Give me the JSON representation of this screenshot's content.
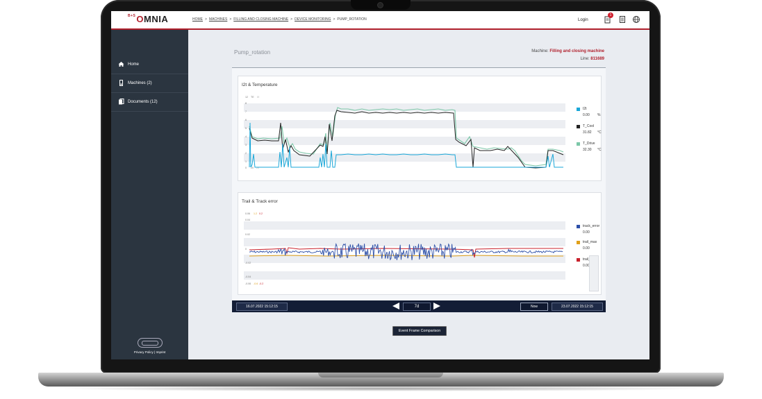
{
  "app": {
    "logo_superscript": "B+S",
    "logo_o": "O",
    "logo_rest": "MNIA"
  },
  "breadcrumb": [
    "HOME",
    "MACHINES",
    "FILLING AND CLOSING MACHINE",
    "DEVICE MONITORING",
    "PUMP_ROTATION"
  ],
  "header": {
    "login": "Login",
    "notification_count": "1",
    "icons": [
      "notifications-icon",
      "document-list-icon",
      "globe-icon"
    ]
  },
  "sidebar": {
    "items": [
      {
        "label": "Home",
        "icon": "home-icon"
      },
      {
        "label": "Machines (2)",
        "icon": "machine-icon"
      },
      {
        "label": "Documents (12)",
        "icon": "documents-icon"
      }
    ],
    "privacy": "Privacy Policy | Imprint"
  },
  "page": {
    "title": "Pump_rotation",
    "machine_label": "Machine:",
    "machine_value": "Filling and closing machine",
    "line_label": "Line:",
    "line_value": "811689"
  },
  "charts": [
    {
      "title": "I2t & Temperature",
      "axis_headers": [
        "12",
        "TE",
        "IX"
      ],
      "yticks": [
        "8",
        "7",
        "6",
        "5",
        "4",
        "3",
        "2",
        "1"
      ],
      "bottom_labels": [
        "0",
        "20",
        "20"
      ],
      "legend": [
        {
          "name": "I2t",
          "value": "0.00",
          "unit": "%",
          "color": "#1aa7d8"
        },
        {
          "name": "T_Cool",
          "value": "31.82",
          "unit": "°C",
          "color": "#222222"
        },
        {
          "name": "T_Drive",
          "value": "32.30",
          "unit": "°C",
          "color": "#7cc7a8"
        }
      ]
    },
    {
      "title": "Trail & Track error",
      "axis_headers": [
        "0.06",
        "1.2",
        "0.2"
      ],
      "yticks": [
        "0.04",
        "0.02",
        "0",
        "-0.02",
        "-0.04"
      ],
      "bottom_labels": [
        "-0.06",
        "-0.6",
        "-0.2"
      ],
      "legend": [
        {
          "name": "track_error",
          "value": "0.00",
          "color": "#2c4fa8"
        },
        {
          "name": "trail_max",
          "value": "0.00",
          "color": "#e0a019"
        },
        {
          "name": "trail_min",
          "value": "0.00",
          "color": "#c8202b"
        }
      ]
    }
  ],
  "timebar": {
    "start": "16.07.2022 15:12:15",
    "range": "7d",
    "now": "Now",
    "end": "23.07.2022 15:12:15"
  },
  "buttons": {
    "event_frame": "Event Frame Comparison"
  }
}
